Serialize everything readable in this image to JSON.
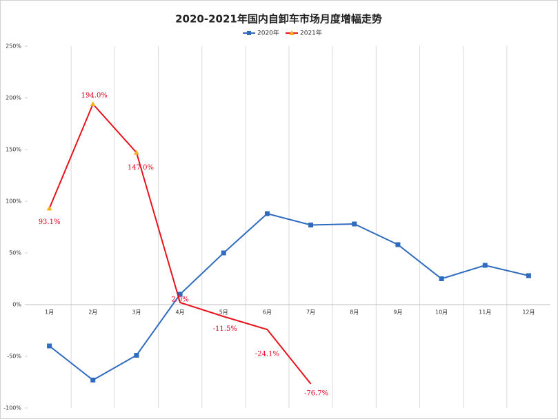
{
  "chart_data": {
    "type": "line",
    "title": "2020-2021年国内自卸车市场月度增幅走势",
    "categories": [
      "1月",
      "2月",
      "3月",
      "4月",
      "5月",
      "6月",
      "7月",
      "8月",
      "9月",
      "10月",
      "11月",
      "12月"
    ],
    "series": [
      {
        "name": "2020年",
        "color": "#2f6bbf",
        "marker": "square",
        "values": [
          -40,
          -73,
          -49,
          10,
          50,
          88,
          77,
          78,
          58,
          25,
          38,
          28
        ]
      },
      {
        "name": "2021年",
        "color": "#e8121b",
        "marker": "triangle",
        "marker_color": "#f2b01e",
        "values": [
          93.1,
          194.0,
          147.0,
          2.0,
          -11.5,
          -24.1,
          -76.7,
          null,
          null,
          null,
          null,
          null
        ],
        "value_labels": [
          "93.1%",
          "194.0%",
          "147.0%",
          "2.0%",
          "-11.5%",
          "-24.1%",
          "-76.7%",
          null,
          null,
          null,
          null,
          null
        ]
      }
    ],
    "ylim": [
      -100,
      250
    ],
    "yticks": [
      {
        "value": -100,
        "label": "-100%"
      },
      {
        "value": -50,
        "label": "-50%"
      },
      {
        "value": 0,
        "label": "0%"
      },
      {
        "value": 50,
        "label": "50%"
      },
      {
        "value": 100,
        "label": "100%"
      },
      {
        "value": 150,
        "label": "150%"
      },
      {
        "value": 200,
        "label": "200%"
      },
      {
        "value": 250,
        "label": "250%"
      }
    ],
    "grid": true,
    "legend": "top"
  }
}
